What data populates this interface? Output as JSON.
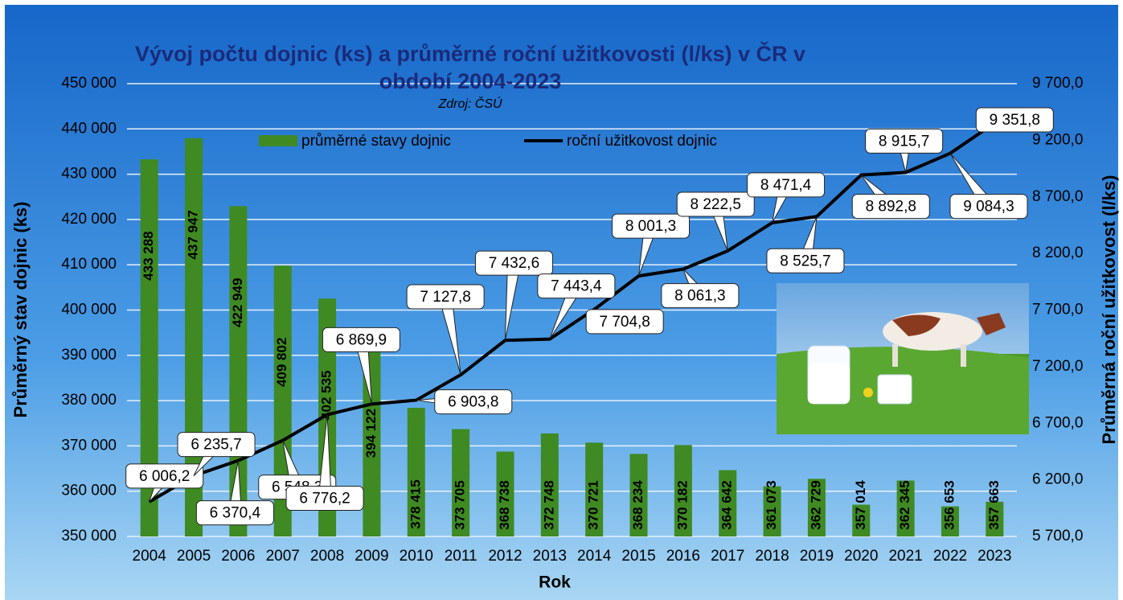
{
  "chart_data": {
    "type": "bar",
    "title": "Vývoj počtu dojnic (ks) a průměrné roční užitkovosti (l/ks) v ČR v období 2004-2023",
    "subtitle": "Zdroj: ČSÚ",
    "x_label": "Rok",
    "y_label": "Průměrný stav dojnic (ks)",
    "y2_label": "Průměrná roční užitkovost (l/ks)",
    "categories": [
      "2004",
      "2005",
      "2006",
      "2007",
      "2008",
      "2009",
      "2010",
      "2011",
      "2012",
      "2013",
      "2014",
      "2015",
      "2016",
      "2017",
      "2018",
      "2019",
      "2020",
      "2021",
      "2022",
      "2023"
    ],
    "series": [
      {
        "name": "průměrné stavy dojnic",
        "type": "bar",
        "color": "#3f8a23",
        "values": [
          433288,
          437947,
          422949,
          409802,
          402535,
          394122,
          378415,
          373705,
          368738,
          372748,
          370721,
          368234,
          370182,
          364642,
          361073,
          362729,
          357014,
          362345,
          356653,
          357663
        ],
        "value_labels": [
          "433 288",
          "437 947",
          "422 949",
          "409 802",
          "402 535",
          "394 122",
          "378 415",
          "373 705",
          "368 738",
          "372 748",
          "370 721",
          "368 234",
          "370 182",
          "364 642",
          "361 073",
          "362 729",
          "357 014",
          "362 345",
          "356 653",
          "357 663"
        ]
      },
      {
        "name": "roční užitkovost dojnic",
        "type": "line",
        "axis": "y2",
        "color": "#000000",
        "values": [
          6006.2,
          6235.7,
          6370.4,
          6548.3,
          6776.2,
          6869.9,
          6903.8,
          7127.8,
          7432.6,
          7443.4,
          7704.8,
          8001.3,
          8061.3,
          8222.5,
          8471.4,
          8525.7,
          8892.8,
          8915.7,
          9084.3,
          9351.8
        ],
        "value_labels": [
          "6 006,2",
          "6 235,7",
          "6 370,4",
          "6 548,3",
          "6 776,2",
          "6 869,9",
          "6 903,8",
          "7 127,8",
          "7 432,6",
          "7 443,4",
          "7 704,8",
          "8 001,3",
          "8 061,3",
          "8 222,5",
          "8 471,4",
          "8 525,7",
          "8 892,8",
          "8 915,7",
          "9 084,3",
          "9 351,8"
        ]
      }
    ],
    "ylim": [
      350000,
      450000
    ],
    "yticks": [
      {
        "value": 350000,
        "label": "350 000"
      },
      {
        "value": 360000,
        "label": "360 000"
      },
      {
        "value": 370000,
        "label": "370 000"
      },
      {
        "value": 380000,
        "label": "380 000"
      },
      {
        "value": 390000,
        "label": "390 000"
      },
      {
        "value": 400000,
        "label": "400 000"
      },
      {
        "value": 410000,
        "label": "410 000"
      },
      {
        "value": 420000,
        "label": "420 000"
      },
      {
        "value": 430000,
        "label": "430 000"
      },
      {
        "value": 440000,
        "label": "440 000"
      },
      {
        "value": 450000,
        "label": "450 000"
      }
    ],
    "y2lim": [
      5700,
      9700
    ],
    "y2ticks": [
      {
        "value": 5700,
        "label": "5 700,0"
      },
      {
        "value": 6200,
        "label": "6 200,0"
      },
      {
        "value": 6700,
        "label": "6 700,0"
      },
      {
        "value": 7200,
        "label": "7 200,0"
      },
      {
        "value": 7700,
        "label": "7 700,0"
      },
      {
        "value": 8200,
        "label": "8 200,0"
      },
      {
        "value": 8700,
        "label": "8 700,0"
      },
      {
        "value": 9200,
        "label": "9 200,0"
      },
      {
        "value": 9700,
        "label": "9 700,0"
      }
    ],
    "grid": true,
    "legend": "top"
  }
}
